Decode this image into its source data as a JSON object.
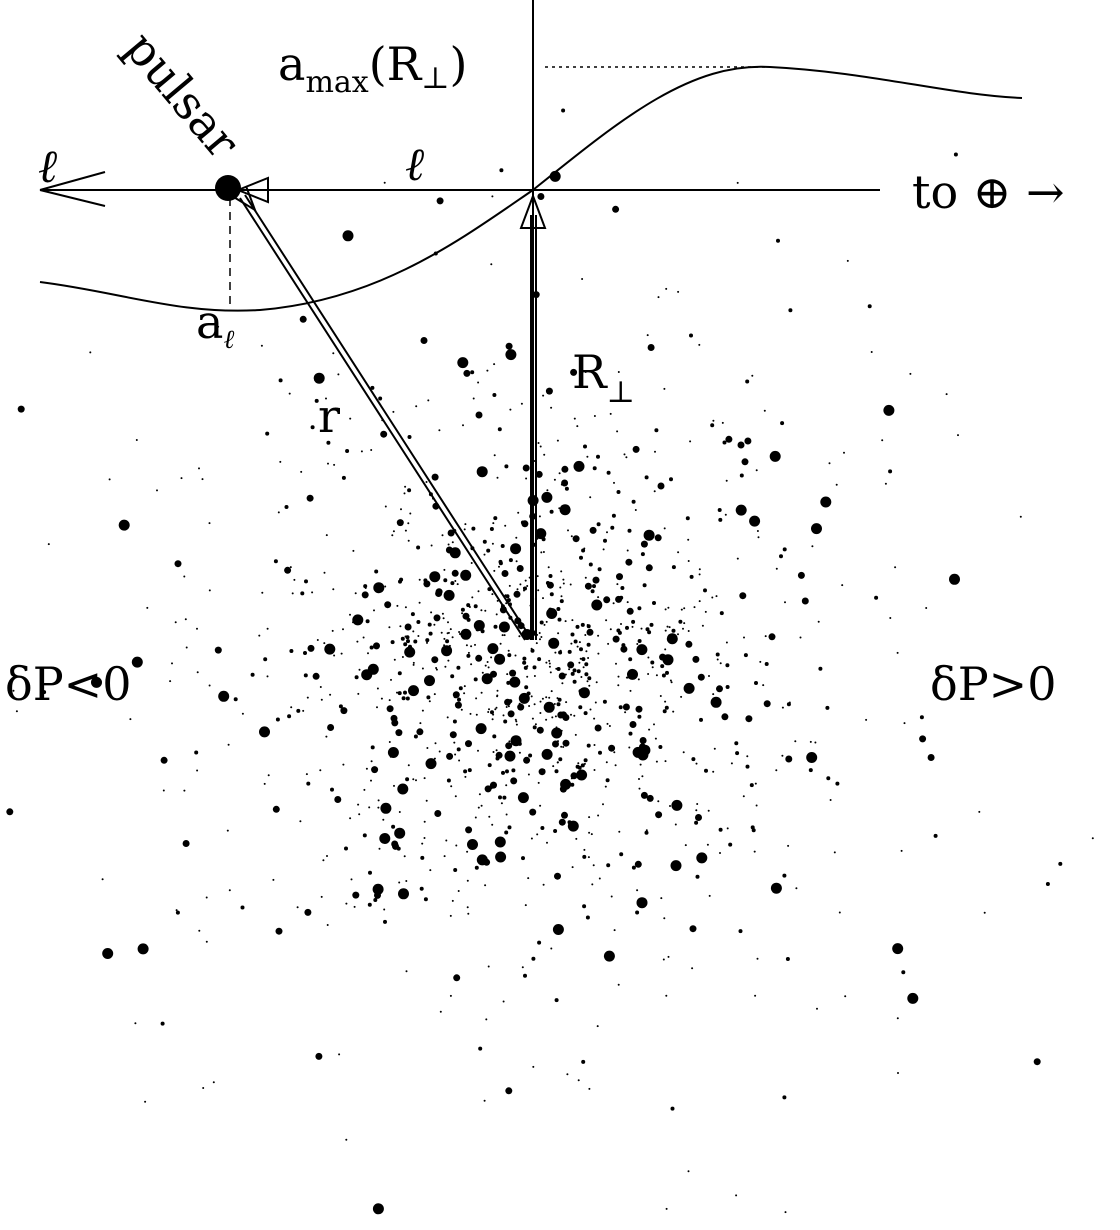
{
  "labels": {
    "pulsar": "pulsar",
    "amax": [
      "a",
      "max",
      "(R",
      "⊥",
      ")"
    ],
    "l_left": "ℓ",
    "l_mid": "ℓ",
    "to_earth": "to ⊕ →",
    "a_l": [
      "a",
      "ℓ"
    ],
    "r_perp": [
      "R",
      "⊥"
    ],
    "r": "r",
    "dp_neg": "δP<0",
    "dp_pos": "δP>0"
  }
}
